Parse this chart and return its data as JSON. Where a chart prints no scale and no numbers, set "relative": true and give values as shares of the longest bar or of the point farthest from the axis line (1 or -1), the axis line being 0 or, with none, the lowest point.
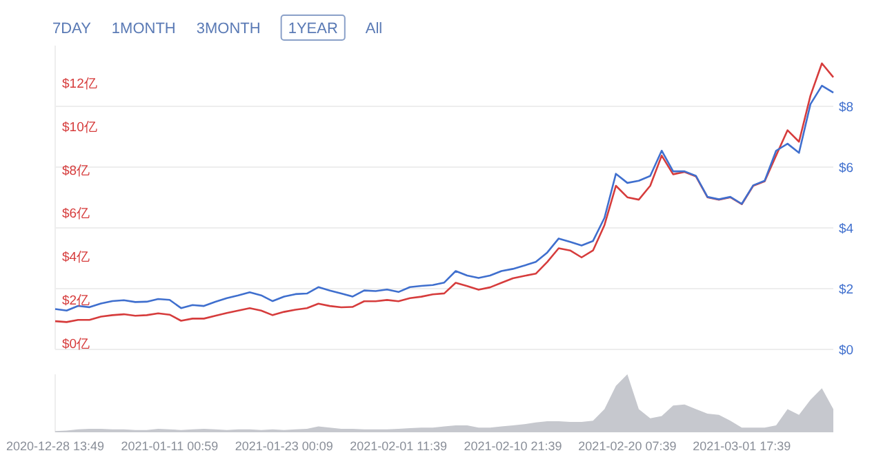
{
  "chart_data": [
    {
      "type": "line",
      "annotations": [
        "7DAY",
        "1MONTH",
        "3MONTH",
        "1YEAR",
        "All"
      ],
      "categories": [
        null,
        null,
        null,
        null,
        null,
        null,
        null,
        null,
        null,
        null,
        null,
        null,
        null,
        null,
        null,
        null,
        null,
        null,
        null,
        null,
        null,
        null,
        null,
        null,
        null,
        null,
        null,
        null,
        null,
        null,
        null,
        null,
        null,
        null,
        null,
        null,
        null,
        null,
        null,
        null,
        null,
        null,
        null,
        null,
        null,
        null,
        null,
        null,
        null,
        null,
        null,
        null,
        null,
        null,
        null,
        null,
        null,
        null,
        null,
        null,
        null,
        null,
        null,
        null,
        null,
        null,
        null,
        null,
        null
      ],
      "series": [
        {
          "color": "#d63c3c",
          "values": [
            1.3,
            1.26,
            1.36,
            1.36,
            1.51,
            1.58,
            1.62,
            1.55,
            1.58,
            1.66,
            1.6,
            1.32,
            1.42,
            1.42,
            1.55,
            1.68,
            1.79,
            1.9,
            1.79,
            1.58,
            1.73,
            1.83,
            1.9,
            2.11,
            2.0,
            1.94,
            1.96,
            2.22,
            2.22,
            2.28,
            2.22,
            2.36,
            2.43,
            2.54,
            2.58,
            3.07,
            2.92,
            2.75,
            2.86,
            3.07,
            3.28,
            3.39,
            3.49,
            4.03,
            4.66,
            4.56,
            4.24,
            4.56,
            5.73,
            7.54,
            7.01,
            6.9,
            7.54,
            8.93,
            8.07,
            8.18,
            7.97,
            7.01,
            6.9,
            7.01,
            6.69,
            7.54,
            7.75,
            8.93,
            10.1,
            9.57,
            11.69,
            13.18,
            12.54
          ]
        },
        {
          "color": "#3f6fce",
          "axis": "y2",
          "values": [
            1.33,
            1.28,
            1.43,
            1.39,
            1.51,
            1.59,
            1.62,
            1.56,
            1.57,
            1.66,
            1.63,
            1.36,
            1.46,
            1.43,
            1.57,
            1.69,
            1.78,
            1.88,
            1.78,
            1.59,
            1.74,
            1.82,
            1.84,
            2.05,
            1.94,
            1.84,
            1.74,
            1.94,
            1.92,
            1.97,
            1.89,
            2.05,
            2.09,
            2.12,
            2.2,
            2.58,
            2.43,
            2.35,
            2.43,
            2.58,
            2.65,
            2.76,
            2.88,
            3.19,
            3.65,
            3.54,
            3.42,
            3.57,
            4.33,
            5.78,
            5.48,
            5.55,
            5.71,
            6.54,
            5.86,
            5.86,
            5.71,
            5.02,
            4.94,
            5.02,
            4.79,
            5.4,
            5.55,
            6.54,
            6.77,
            6.47,
            8.07,
            8.68,
            8.45
          ]
        }
      ],
      "ylim": [
        0,
        14
      ],
      "yticks": [
        {
          "value": 0,
          "label": "$0亿"
        },
        {
          "value": 2,
          "label": "$2亿"
        },
        {
          "value": 4,
          "label": "$4亿"
        },
        {
          "value": 6,
          "label": "$6亿"
        },
        {
          "value": 8,
          "label": "$8亿"
        },
        {
          "value": 10,
          "label": "$10亿"
        },
        {
          "value": 12,
          "label": "$12亿"
        }
      ],
      "y2lim": [
        0,
        10
      ],
      "y2ticks": [
        {
          "value": 0,
          "label": "$0"
        },
        {
          "value": 2,
          "label": "$2"
        },
        {
          "value": 4,
          "label": "$4"
        },
        {
          "value": 6,
          "label": "$6"
        },
        {
          "value": 8,
          "label": "$8"
        }
      ],
      "grid": "y",
      "tick_labels": "y"
    },
    {
      "type": "area",
      "relative": true,
      "color": "#c6c8ce",
      "categories": [
        "2020-12-28 13:49",
        null,
        null,
        null,
        null,
        null,
        null,
        null,
        null,
        null,
        "2021-01-11 00:59",
        null,
        null,
        null,
        null,
        null,
        null,
        null,
        null,
        null,
        "2021-01-23 00:09",
        null,
        null,
        null,
        null,
        null,
        null,
        null,
        null,
        null,
        "2021-02-01 11:39",
        null,
        null,
        null,
        null,
        null,
        null,
        null,
        null,
        null,
        "2021-02-10 21:39",
        null,
        null,
        null,
        null,
        null,
        null,
        null,
        null,
        null,
        "2021-02-20 07:39",
        null,
        null,
        null,
        null,
        null,
        null,
        null,
        null,
        null,
        "2021-03-01 17:39",
        null,
        null,
        null,
        null,
        null,
        null,
        null,
        null
      ],
      "values": [
        0.02,
        0.03,
        0.05,
        0.06,
        0.06,
        0.05,
        0.05,
        0.04,
        0.04,
        0.06,
        0.05,
        0.04,
        0.05,
        0.06,
        0.05,
        0.04,
        0.05,
        0.05,
        0.04,
        0.05,
        0.04,
        0.05,
        0.06,
        0.1,
        0.08,
        0.06,
        0.06,
        0.05,
        0.05,
        0.05,
        0.06,
        0.07,
        0.08,
        0.08,
        0.1,
        0.12,
        0.12,
        0.08,
        0.08,
        0.1,
        0.12,
        0.14,
        0.17,
        0.19,
        0.19,
        0.18,
        0.18,
        0.2,
        0.4,
        0.8,
        1.0,
        0.4,
        0.24,
        0.28,
        0.46,
        0.48,
        0.4,
        0.32,
        0.3,
        0.2,
        0.08,
        0.08,
        0.08,
        0.12,
        0.4,
        0.3,
        0.56,
        0.76,
        0.4
      ]
    }
  ]
}
